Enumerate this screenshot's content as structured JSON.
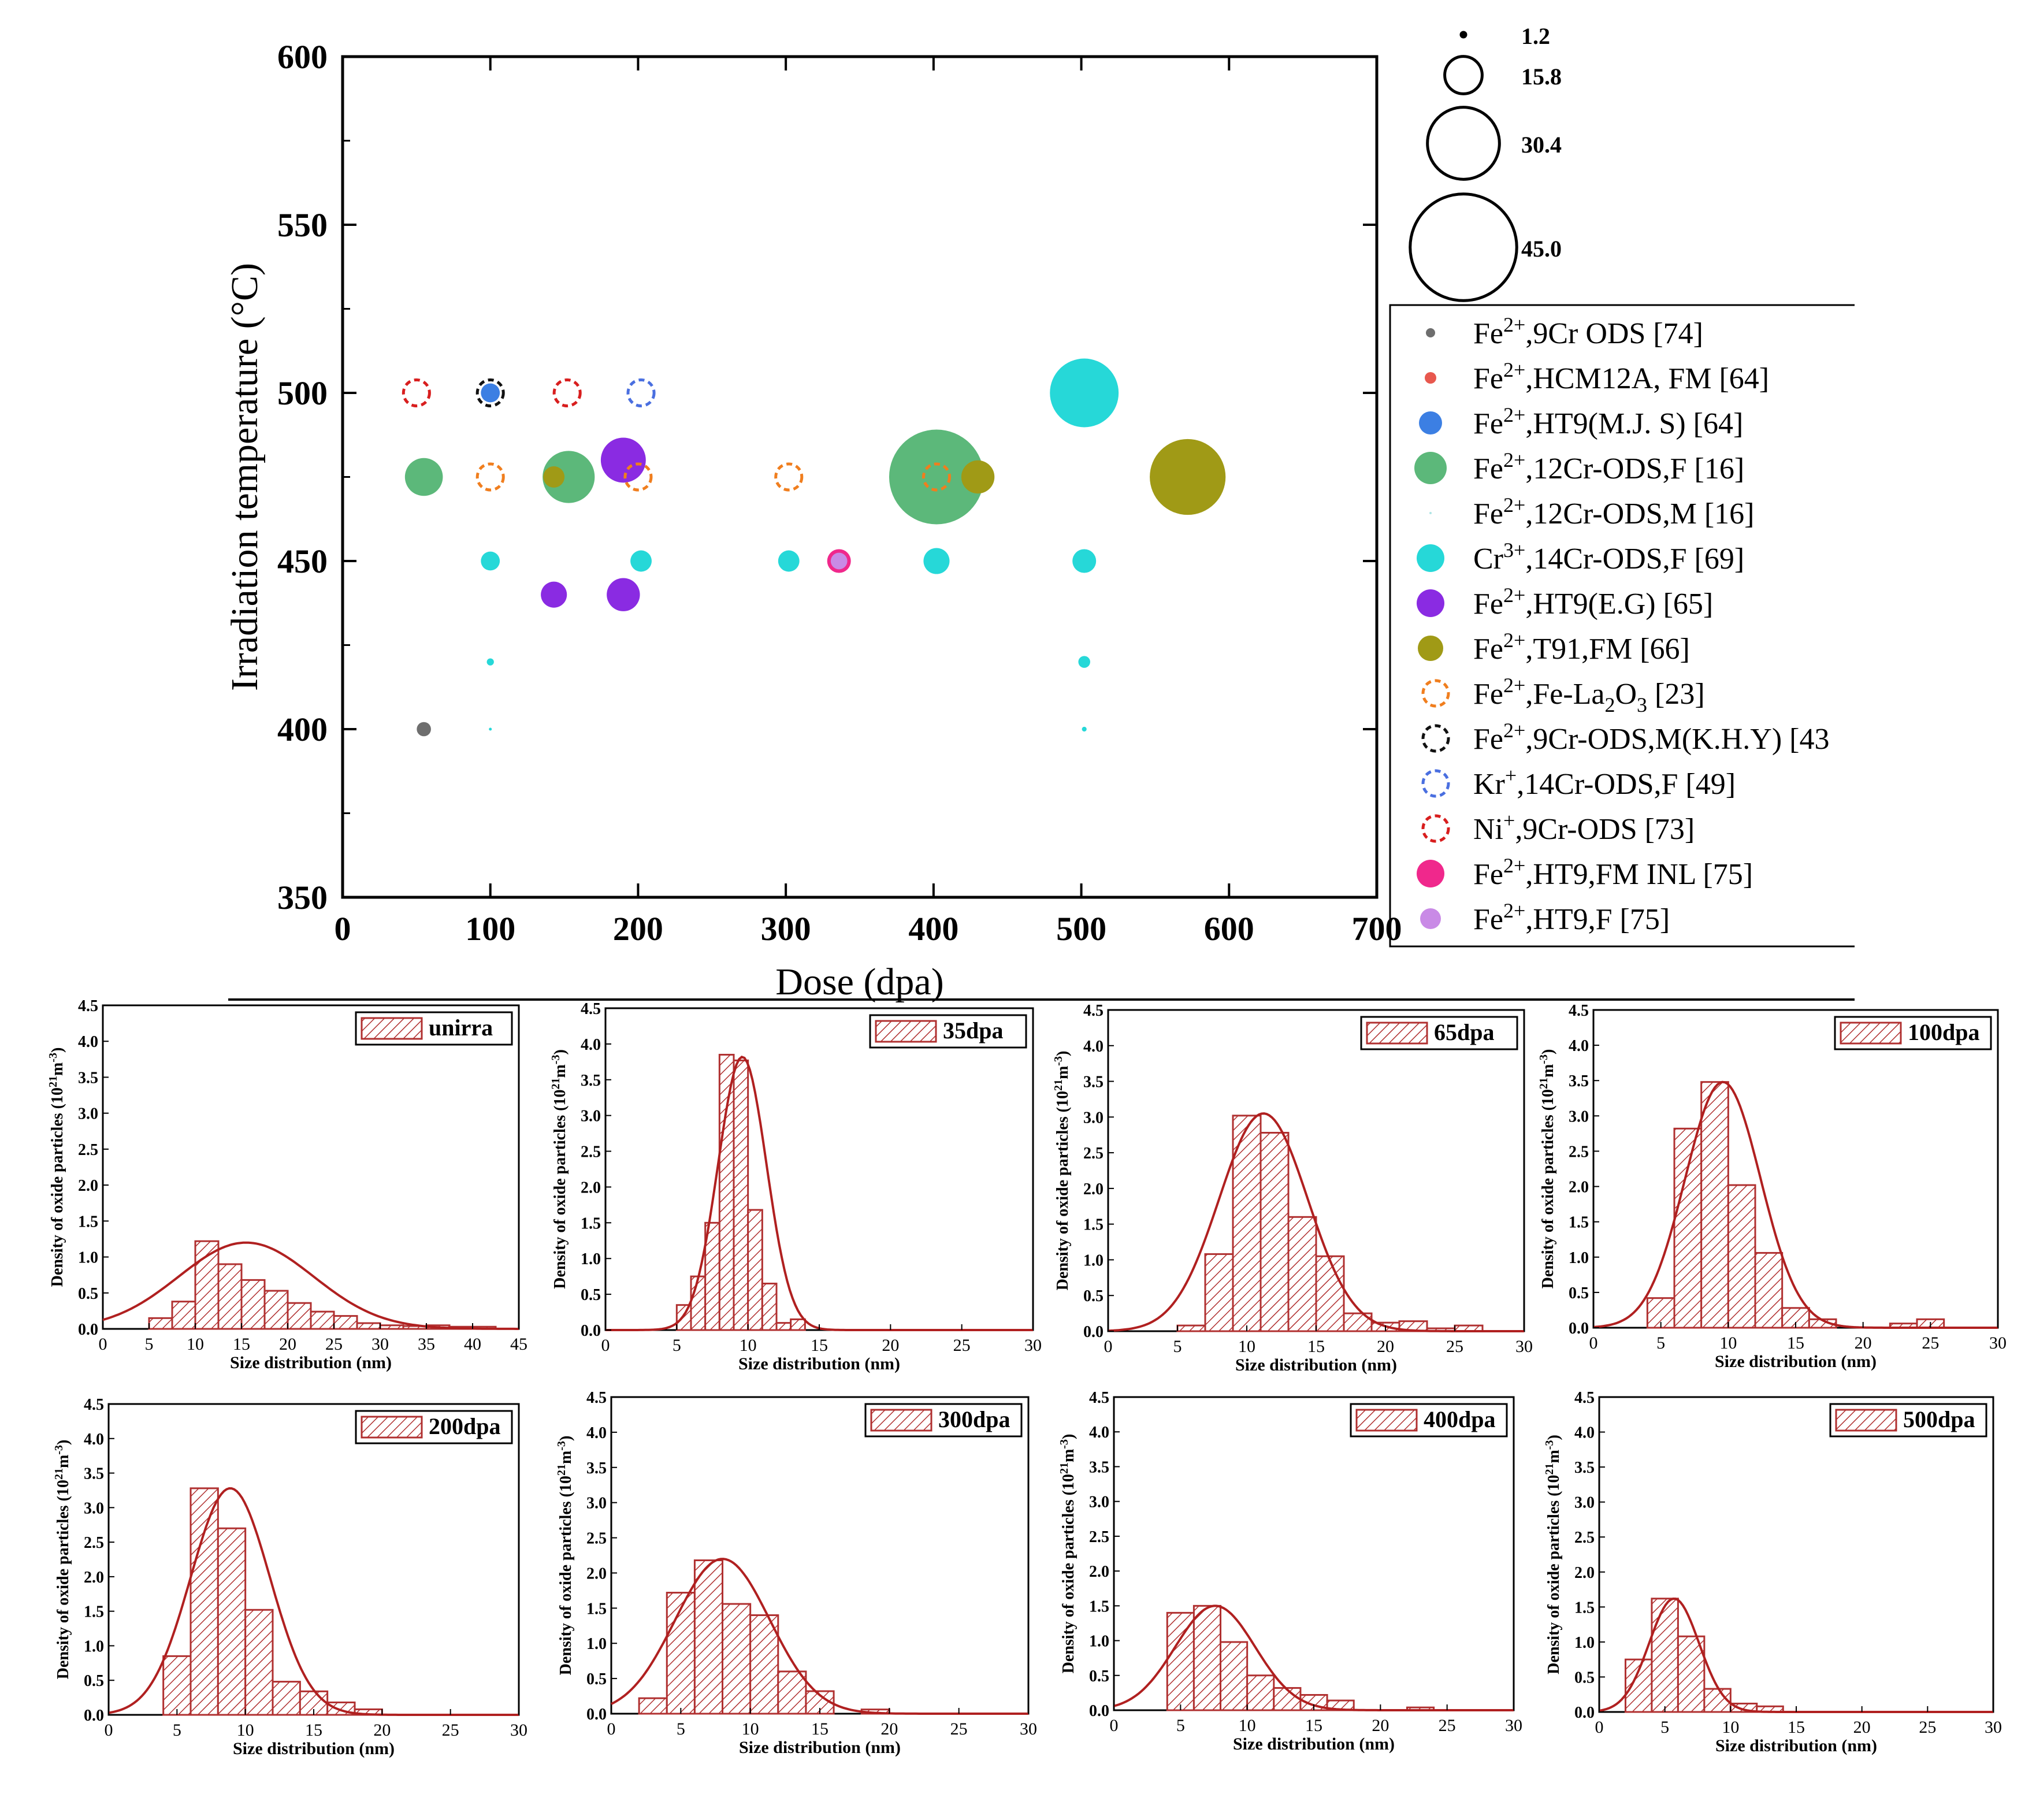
{
  "chart_data": [
    {
      "type": "scatter",
      "title": "",
      "xlabel": "Dose (dpa)",
      "ylabel": "Irradiation temperature (°C)",
      "xlim": [
        0,
        700
      ],
      "ylim": [
        350,
        600
      ],
      "xticks": [
        0,
        100,
        200,
        300,
        400,
        500,
        600,
        700
      ],
      "xtick_labels": [
        "0",
        "100",
        "200",
        "300",
        "400",
        "500",
        "600",
        "700"
      ],
      "yticks": [
        350,
        400,
        450,
        500,
        550,
        600
      ],
      "ytick_labels": [
        "350",
        "400",
        "450",
        "500",
        "550",
        "600"
      ],
      "size_scale": {
        "description": "circle diameter",
        "entries": [
          {
            "label": "1.2",
            "value": 1.2
          },
          {
            "label": "15.8",
            "value": 15.8
          },
          {
            "label": "30.4",
            "value": 30.4
          },
          {
            "label": "45.0",
            "value": 45.0
          }
        ]
      },
      "series": [
        {
          "name": "Fe2+,9Cr ODS [74]",
          "ion": "Fe",
          "charge": "2+",
          "rest": ",9Cr ODS [74]",
          "color": "#6e6e6e",
          "style": "filled",
          "points": [
            {
              "x": 55,
              "y": 400,
              "size": 6
            }
          ]
        },
        {
          "name": "Fe2+,HCM12A, FM [64]",
          "ion": "Fe",
          "charge": "2+",
          "rest": ",HCM12A, FM [64]",
          "color": "#e8584e",
          "style": "filled",
          "points": []
        },
        {
          "name": "Fe2+,HT9(M.J. S) [64]",
          "ion": "Fe",
          "charge": "2+",
          "rest": ",HT9(M.J. S) [64]",
          "color": "#3c7fe3",
          "style": "filled",
          "points": [
            {
              "x": 100,
              "y": 500,
              "size": 8
            }
          ]
        },
        {
          "name": "Fe2+,12Cr-ODS,F [16]",
          "ion": "Fe",
          "charge": "2+",
          "rest": ",12Cr-ODS,F [16]",
          "color": "#5cb87a",
          "style": "filled",
          "points": [
            {
              "x": 55,
              "y": 475,
              "size": 16
            },
            {
              "x": 153,
              "y": 475,
              "size": 22
            },
            {
              "x": 402,
              "y": 475,
              "size": 40
            }
          ]
        },
        {
          "name": "Fe2+,12Cr-ODS,M [16]",
          "ion": "Fe",
          "charge": "2+",
          "rest": ",12Cr-ODS,M [16]",
          "color": "#aee4e4",
          "style": "filled",
          "points": []
        },
        {
          "name": "Cr3+,14Cr-ODS,F [69]",
          "ion": "Cr",
          "charge": "3+",
          "rest": ",14Cr-ODS,F [69]",
          "color": "#26d8d8",
          "style": "filled",
          "points": [
            {
              "x": 502,
              "y": 500,
              "size": 29
            },
            {
              "x": 100,
              "y": 450,
              "size": 8
            },
            {
              "x": 202,
              "y": 450,
              "size": 9
            },
            {
              "x": 302,
              "y": 450,
              "size": 9
            },
            {
              "x": 402,
              "y": 450,
              "size": 11
            },
            {
              "x": 502,
              "y": 450,
              "size": 10
            },
            {
              "x": 100,
              "y": 420,
              "size": 3
            },
            {
              "x": 502,
              "y": 420,
              "size": 5
            },
            {
              "x": 100,
              "y": 400,
              "size": 1.2
            },
            {
              "x": 502,
              "y": 400,
              "size": 2
            }
          ]
        },
        {
          "name": "Fe2+,HT9(E.G) [65]",
          "ion": "Fe",
          "charge": "2+",
          "rest": ",HT9(E.G) [65]",
          "color": "#8a2be2",
          "style": "filled",
          "points": [
            {
              "x": 190,
              "y": 480,
              "size": 19
            },
            {
              "x": 143,
              "y": 440,
              "size": 11
            },
            {
              "x": 190,
              "y": 440,
              "size": 14
            }
          ]
        },
        {
          "name": "Fe2+,T91,FM [66]",
          "ion": "Fe",
          "charge": "2+",
          "rest": ",T91,FM [66]",
          "color": "#a09a16",
          "style": "filled",
          "points": [
            {
              "x": 143,
              "y": 475,
              "size": 9
            },
            {
              "x": 430,
              "y": 475,
              "size": 14
            },
            {
              "x": 572,
              "y": 475,
              "size": 32
            }
          ]
        },
        {
          "name": "Fe2+,Fe-La2O3 [23]",
          "ion": "Fe",
          "charge": "2+",
          "rest": ",Fe-La",
          "sub": "2",
          "rest2": "O",
          "sub2": "3",
          "rest3": " [23]",
          "color": "#f07e1e",
          "style": "dashed",
          "points": [
            {
              "x": 100,
              "y": 475,
              "size": 11
            },
            {
              "x": 200,
              "y": 475,
              "size": 11
            },
            {
              "x": 302,
              "y": 475,
              "size": 11
            },
            {
              "x": 402,
              "y": 475,
              "size": 11
            }
          ]
        },
        {
          "name": "Fe2+,9Cr-ODS,M(K.H.Y) [43]",
          "ion": "Fe",
          "charge": "2+",
          "rest": ",9Cr-ODS,M(K.H.Y) [43",
          "color": "#111111",
          "style": "dashed",
          "points": [
            {
              "x": 100,
              "y": 500,
              "size": 11
            }
          ]
        },
        {
          "name": "Kr+,14Cr-ODS,F [49]",
          "ion": "Kr",
          "charge": "+",
          "rest": ",14Cr-ODS,F [49]",
          "color": "#4a6fe0",
          "style": "dashed",
          "points": [
            {
              "x": 202,
              "y": 500,
              "size": 11
            }
          ]
        },
        {
          "name": "Ni+,9Cr-ODS [73]",
          "ion": "Ni",
          "charge": "+",
          "rest": ",9Cr-ODS [73]",
          "color": "#d81e1e",
          "style": "dashed",
          "points": [
            {
              "x": 50,
              "y": 500,
              "size": 11
            },
            {
              "x": 152,
              "y": 500,
              "size": 11
            }
          ]
        },
        {
          "name": "Fe2+,HT9,FM INL [75]",
          "ion": "Fe",
          "charge": "2+",
          "rest": ",HT9,FM INL [75]",
          "color": "#f0288c",
          "style": "filled",
          "points": [
            {
              "x": 336,
              "y": 450,
              "size": 10
            }
          ]
        },
        {
          "name": "Fe2+,HT9,F [75]",
          "ion": "Fe",
          "charge": "2+",
          "rest": ",HT9,F [75]",
          "color": "#c98ae6",
          "style": "filled",
          "points": [
            {
              "x": 336,
              "y": 450,
              "size": 7
            }
          ]
        }
      ]
    },
    {
      "type": "bar",
      "label": "unirra",
      "xlabel": "Size distribution (nm)",
      "ylabel": "Density of oxide particles (10^21 m^-3)",
      "xlim": [
        0,
        45
      ],
      "xticks": [
        0,
        5,
        10,
        15,
        20,
        25,
        30,
        35,
        40,
        45
      ],
      "ylim": [
        0,
        4.5
      ],
      "yticks": [
        0,
        0.5,
        1.0,
        1.5,
        2.0,
        2.5,
        3.0,
        3.5,
        4.0,
        4.5
      ],
      "bin_width": 2.5,
      "bins": [
        5,
        7.5,
        10,
        12.5,
        15,
        17.5,
        20,
        22.5,
        25,
        27.5,
        30,
        32.5,
        35,
        37.5,
        40
      ],
      "values": [
        0.15,
        0.38,
        1.22,
        0.9,
        0.68,
        0.53,
        0.36,
        0.24,
        0.18,
        0.08,
        0.05,
        0.04,
        0.05,
        0.03,
        0.03
      ],
      "fit": {
        "mean": 15.5,
        "sigma": 7.3,
        "peak": 1.2
      }
    },
    {
      "type": "bar",
      "label": "35dpa",
      "xlabel": "Size distribution (nm)",
      "ylabel": "Density of oxide particles (10^21 m^-3)",
      "xlim": [
        0,
        30
      ],
      "xticks": [
        0,
        5,
        10,
        15,
        20,
        25,
        30
      ],
      "ylim": [
        0,
        4.5
      ],
      "yticks": [
        0,
        0.5,
        1.0,
        1.5,
        2.0,
        2.5,
        3.0,
        3.5,
        4.0,
        4.5
      ],
      "bin_width": 1,
      "bins": [
        5,
        6,
        7,
        8,
        9,
        10,
        11,
        12,
        13,
        14,
        15
      ],
      "values": [
        0.35,
        0.75,
        1.5,
        3.85,
        3.77,
        1.68,
        0.65,
        0.1,
        0.15,
        0.0,
        0.0
      ],
      "fit": {
        "mean": 9.6,
        "sigma": 1.7,
        "peak": 3.82
      }
    },
    {
      "type": "bar",
      "label": "65dpa",
      "xlabel": "Size distribution (nm)",
      "ylabel": "Density of oxide particles (10^21 m^-3)",
      "xlim": [
        0,
        30
      ],
      "xticks": [
        0,
        5,
        10,
        15,
        20,
        25,
        30
      ],
      "ylim": [
        0,
        4.5
      ],
      "yticks": [
        0,
        0.5,
        1.0,
        1.5,
        2.0,
        2.5,
        3.0,
        3.5,
        4.0,
        4.5
      ],
      "bin_width": 2,
      "bins": [
        5,
        7,
        9,
        11,
        13,
        15,
        17,
        19,
        21,
        23,
        25
      ],
      "values": [
        0.08,
        1.08,
        3.02,
        2.78,
        1.6,
        1.05,
        0.25,
        0.12,
        0.14,
        0.04,
        0.08
      ],
      "fit": {
        "mean": 11.2,
        "sigma": 3.2,
        "peak": 3.05
      }
    },
    {
      "type": "bar",
      "label": "100dpa",
      "xlabel": "Size distribution (nm)",
      "ylabel": "Density of oxide particles (10^21 m^-3)",
      "xlim": [
        0,
        30
      ],
      "xticks": [
        0,
        5,
        10,
        15,
        20,
        25,
        30
      ],
      "ylim": [
        0,
        4.5
      ],
      "yticks": [
        0,
        0.5,
        1.0,
        1.5,
        2.0,
        2.5,
        3.0,
        3.5,
        4.0,
        4.5
      ],
      "bin_width": 2,
      "bins": [
        4,
        6,
        8,
        10,
        12,
        14,
        16,
        18,
        20,
        22,
        24
      ],
      "values": [
        0.42,
        2.82,
        3.48,
        2.02,
        1.06,
        0.28,
        0.12,
        0.0,
        0.0,
        0.06,
        0.12
      ],
      "fit": {
        "mean": 9.6,
        "sigma": 2.8,
        "peak": 3.48
      }
    },
    {
      "type": "bar",
      "label": "200dpa",
      "xlabel": "Size distribution (nm)",
      "ylabel": "Density of oxide particles (10^21 m^-3)",
      "xlim": [
        0,
        30
      ],
      "xticks": [
        0,
        5,
        10,
        15,
        20,
        25,
        30
      ],
      "ylim": [
        0,
        4.5
      ],
      "yticks": [
        0,
        0.5,
        1.0,
        1.5,
        2.0,
        2.5,
        3.0,
        3.5,
        4.0,
        4.5
      ],
      "bin_width": 2,
      "bins": [
        4,
        6,
        8,
        10,
        12,
        14,
        16,
        18
      ],
      "values": [
        0.85,
        3.28,
        2.7,
        1.52,
        0.48,
        0.34,
        0.18,
        0.08
      ],
      "fit": {
        "mean": 8.9,
        "sigma": 2.9,
        "peak": 3.28
      }
    },
    {
      "type": "bar",
      "label": "300dpa",
      "xlabel": "Size distribution (nm)",
      "ylabel": "Density of oxide particles (10^21 m^-3)",
      "xlim": [
        0,
        30
      ],
      "xticks": [
        0,
        5,
        10,
        15,
        20,
        25,
        30
      ],
      "ylim": [
        0,
        4.5
      ],
      "yticks": [
        0,
        0.5,
        1.0,
        1.5,
        2.0,
        2.5,
        3.0,
        3.5,
        4.0,
        4.5
      ],
      "bin_width": 2,
      "bins": [
        2,
        4,
        6,
        8,
        10,
        12,
        14,
        16,
        18
      ],
      "values": [
        0.22,
        1.72,
        2.18,
        1.56,
        1.4,
        0.6,
        0.32,
        0.0,
        0.06
      ],
      "fit": {
        "mean": 8.0,
        "sigma": 3.4,
        "peak": 2.2
      }
    },
    {
      "type": "bar",
      "label": "400dpa",
      "xlabel": "Size distribution (nm)",
      "ylabel": "Density of oxide particles (10^21 m^-3)",
      "xlim": [
        0,
        30
      ],
      "xticks": [
        0,
        5,
        10,
        15,
        20,
        25,
        30
      ],
      "ylim": [
        0,
        4.5
      ],
      "yticks": [
        0,
        0.5,
        1.0,
        1.5,
        2.0,
        2.5,
        3.0,
        3.5,
        4.0,
        4.5
      ],
      "bin_width": 2,
      "bins": [
        4,
        6,
        8,
        10,
        12,
        14,
        16,
        18,
        20,
        22
      ],
      "values": [
        1.4,
        1.5,
        0.98,
        0.5,
        0.32,
        0.22,
        0.14,
        0.0,
        0.0,
        0.04
      ],
      "fit": {
        "mean": 7.6,
        "sigma": 3.0,
        "peak": 1.5
      }
    },
    {
      "type": "bar",
      "label": "500dpa",
      "xlabel": "Size distribution (nm)",
      "ylabel": "Density of oxide particles (10^21 m^-3)",
      "xlim": [
        0,
        30
      ],
      "xticks": [
        0,
        5,
        10,
        15,
        20,
        25,
        30
      ],
      "ylim": [
        0,
        4.5
      ],
      "yticks": [
        0,
        0.5,
        1.0,
        1.5,
        2.0,
        2.5,
        3.0,
        3.5,
        4.0,
        4.5
      ],
      "bin_width": 2,
      "bins": [
        2,
        4,
        6,
        8,
        10,
        12
      ],
      "values": [
        0.75,
        1.62,
        1.08,
        0.33,
        0.12,
        0.08
      ],
      "fit": {
        "mean": 5.7,
        "sigma": 1.9,
        "peak": 1.62
      }
    }
  ]
}
